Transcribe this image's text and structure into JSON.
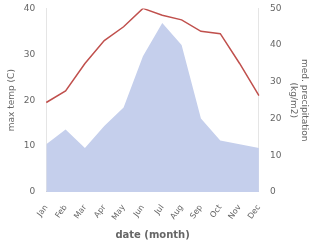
{
  "chart_data": {
    "type": "line",
    "categories": [
      "Jan",
      "Feb",
      "Mar",
      "Apr",
      "May",
      "Jun",
      "Jul",
      "Aug",
      "Sep",
      "Oct",
      "Nov",
      "Dec"
    ],
    "series": [
      {
        "type": "area",
        "axis": "y2",
        "color": "#c5cfec",
        "values": [
          13,
          17,
          12,
          18,
          23,
          37,
          46,
          40,
          20,
          14,
          13,
          12
        ]
      },
      {
        "type": "line",
        "color": "#c0504d",
        "values": [
          19.5,
          22,
          28,
          33,
          36,
          40,
          38.5,
          37.5,
          35,
          34.5,
          28,
          21
        ]
      }
    ],
    "xlabel": "date (month)",
    "ylabel": "max temp (C)",
    "y2label": "med. precipitation\n(kg/m2)",
    "ylim": [
      0,
      40
    ],
    "yticks": [
      0,
      10,
      20,
      30,
      40
    ],
    "y2lim": [
      0,
      50
    ],
    "y2ticks": [
      0,
      10,
      20,
      30,
      40,
      50
    ],
    "grid": false
  }
}
